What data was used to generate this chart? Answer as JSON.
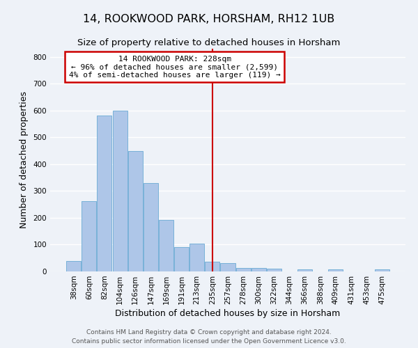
{
  "title": "14, ROOKWOOD PARK, HORSHAM, RH12 1UB",
  "subtitle": "Size of property relative to detached houses in Horsham",
  "xlabel": "Distribution of detached houses by size in Horsham",
  "ylabel": "Number of detached properties",
  "bar_labels": [
    "38sqm",
    "60sqm",
    "82sqm",
    "104sqm",
    "126sqm",
    "147sqm",
    "169sqm",
    "191sqm",
    "213sqm",
    "235sqm",
    "257sqm",
    "278sqm",
    "300sqm",
    "322sqm",
    "344sqm",
    "366sqm",
    "388sqm",
    "409sqm",
    "431sqm",
    "453sqm",
    "475sqm"
  ],
  "bar_heights": [
    40,
    262,
    580,
    600,
    450,
    330,
    193,
    90,
    103,
    37,
    32,
    13,
    13,
    10,
    0,
    8,
    0,
    8,
    0,
    0,
    8
  ],
  "bar_color": "#aec6e8",
  "bar_edge_color": "#6aaad4",
  "vline_color": "#cc0000",
  "vline_x": 9.0,
  "ylim": [
    0,
    830
  ],
  "yticks": [
    0,
    100,
    200,
    300,
    400,
    500,
    600,
    700,
    800
  ],
  "annotation_title": "14 ROOKWOOD PARK: 228sqm",
  "annotation_line1": "← 96% of detached houses are smaller (2,599)",
  "annotation_line2": "4% of semi-detached houses are larger (119) →",
  "annotation_box_color": "#ffffff",
  "annotation_box_edge": "#cc0000",
  "footer1": "Contains HM Land Registry data © Crown copyright and database right 2024.",
  "footer2": "Contains public sector information licensed under the Open Government Licence v3.0.",
  "background_color": "#eef2f8",
  "grid_color": "#ffffff",
  "title_fontsize": 11.5,
  "subtitle_fontsize": 9.5,
  "axis_label_fontsize": 9,
  "tick_fontsize": 7.5,
  "footer_fontsize": 6.5,
  "ann_fontsize": 8.0
}
